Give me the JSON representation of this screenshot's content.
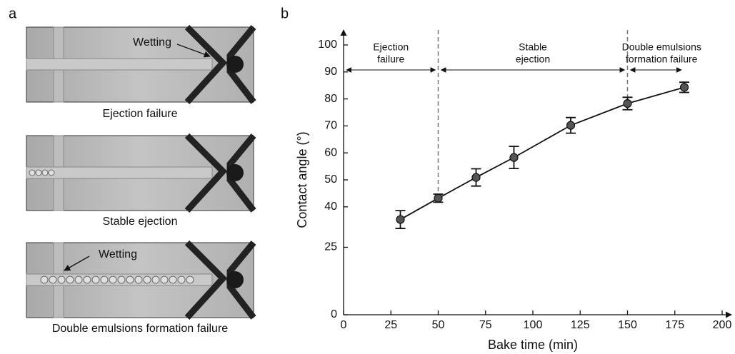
{
  "panel_a": {
    "label": "a",
    "images": [
      {
        "caption": "Ejection failure",
        "annotation": "Wetting"
      },
      {
        "caption": "Stable ejection"
      },
      {
        "caption": "Double emulsions formation failure",
        "annotation": "Wetting"
      }
    ]
  },
  "chart_data": {
    "type": "line",
    "panel_label": "b",
    "x_label": "Bake time (min)",
    "y_label": "Contact angle (°)",
    "x": [
      30,
      50,
      70,
      90,
      120,
      150,
      180
    ],
    "series": [
      {
        "color": "#555555",
        "values": [
          35.3,
          43.2,
          50.9,
          58.3,
          70.2,
          78.3,
          84.3
        ],
        "errors": [
          3.3,
          1.5,
          3.2,
          4.1,
          2.9,
          2.3,
          1.9
        ]
      }
    ],
    "xlim": [
      0,
      200
    ],
    "xticks": [
      0,
      25,
      50,
      75,
      100,
      125,
      150,
      175,
      200
    ],
    "ylim": [
      0,
      100
    ],
    "yticks": [
      0,
      25,
      40,
      50,
      60,
      70,
      80,
      90,
      100
    ],
    "dividers": [
      50,
      150
    ],
    "regions": [
      {
        "lines": [
          "Ejection",
          "failure"
        ],
        "from": 0,
        "to": 50
      },
      {
        "lines": [
          "Stable",
          "ejection"
        ],
        "from": 50,
        "to": 150
      },
      {
        "lines": [
          "Double emulsions",
          "formation failure"
        ],
        "from": 150,
        "to": 180
      }
    ]
  }
}
